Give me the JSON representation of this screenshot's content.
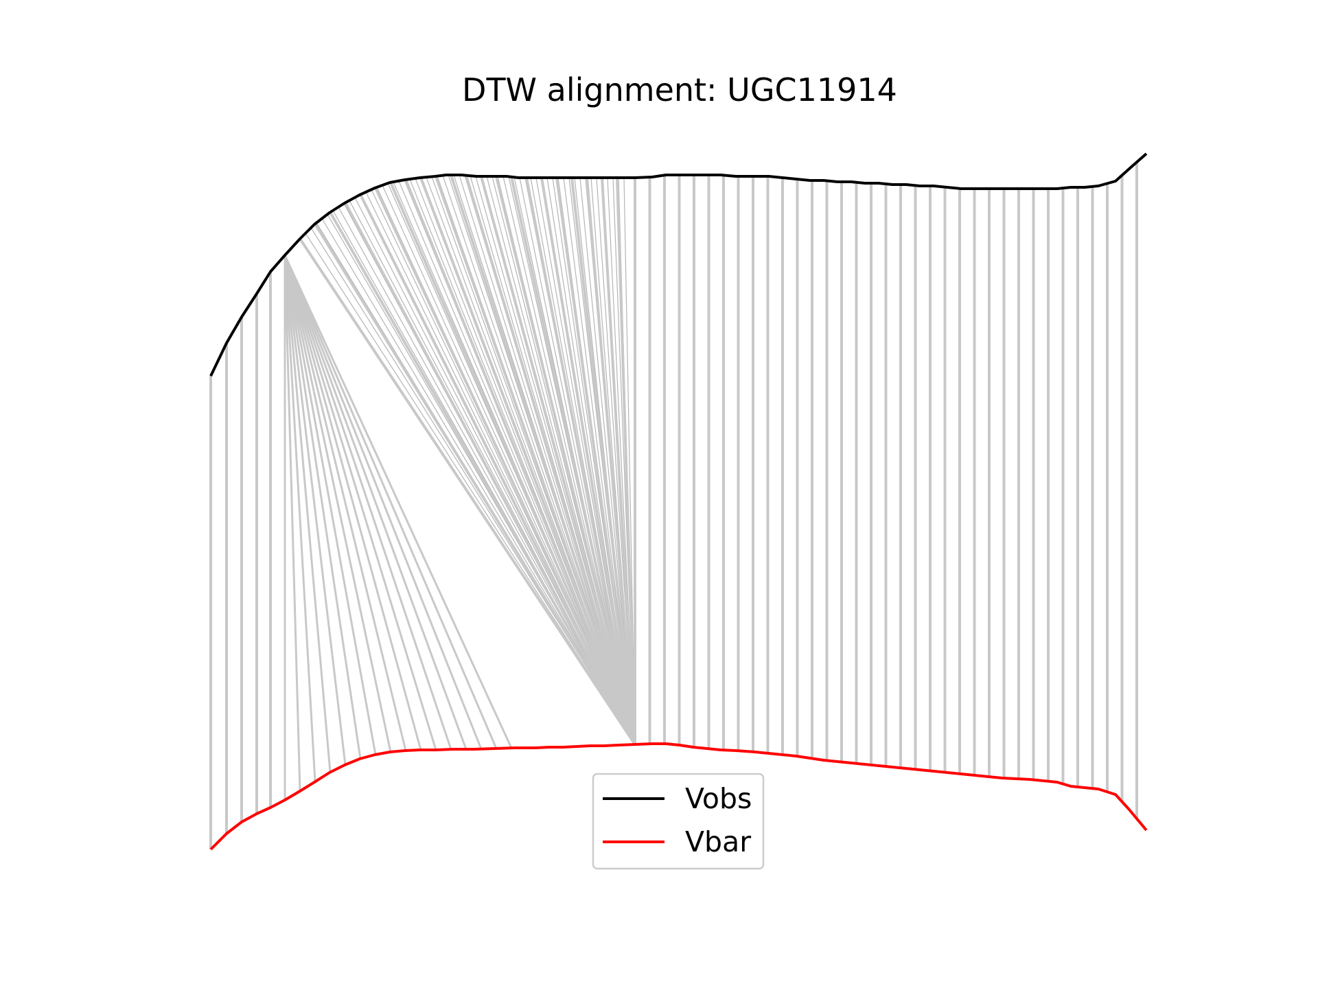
{
  "chart_data": {
    "type": "line",
    "title": "DTW alignment: UGC11914",
    "xlabel": "",
    "ylabel": "",
    "axes_visible": false,
    "grid": false,
    "legend_position": "lower center",
    "series": [
      {
        "name": "Vobs",
        "color": "#000000",
        "values": [
          0.78,
          0.83,
          0.86,
          0.89,
          0.9,
          0.92,
          0.94,
          0.955,
          0.965,
          0.975,
          0.98,
          0.985,
          0.988,
          0.99,
          0.99,
          0.991,
          0.992,
          0.993,
          0.993,
          0.992,
          0.991,
          0.991,
          0.991,
          0.991,
          0.991,
          0.99,
          0.99,
          0.99,
          0.99,
          0.99,
          0.99,
          0.99,
          0.99,
          0.99,
          0.99,
          0.99,
          0.99,
          0.99,
          0.99,
          0.99,
          0.99,
          0.99,
          0.99,
          0.99,
          0.99,
          0.99,
          0.99,
          0.99,
          0.99,
          0.99,
          0.99,
          0.99,
          0.99,
          0.99,
          0.99,
          0.99,
          0.99,
          0.99,
          0.99,
          0.99,
          0.99,
          0.99,
          0.99,
          0.99,
          0.99,
          0.99,
          0.99,
          0.99,
          0.99,
          0.99,
          0.99,
          0.99,
          0.99,
          0.99,
          0.99,
          0.99,
          0.99,
          0.99,
          0.99,
          0.99,
          0.99,
          0.99,
          0.99,
          0.99,
          0.99,
          0.99,
          0.99,
          0.99,
          0.99,
          0.99,
          0.99,
          0.99,
          0.99,
          0.99,
          0.99,
          0.99,
          0.99,
          0.99,
          0.99,
          0.99,
          0.99,
          0.99,
          0.99,
          0.99,
          0.99,
          0.99,
          0.99,
          0.99,
          0.99,
          0.99,
          0.99,
          0.99,
          0.99,
          0.99,
          0.99,
          0.99,
          0.99,
          0.99,
          0.99,
          0.99,
          0.99,
          0.99,
          0.99,
          0.99,
          0.99,
          0.99,
          0.99,
          0.99,
          0.99,
          0.99,
          0.99,
          0.99,
          0.99,
          0.99,
          0.99,
          0.99,
          0.99,
          0.99,
          0.99,
          0.99,
          0.99,
          0.99,
          0.99,
          0.99,
          0.99,
          0.99,
          0.99,
          0.99,
          0.99,
          0.99,
          0.99,
          0.99,
          0.99,
          0.99,
          0.99,
          0.99,
          0.99,
          0.99,
          0.99,
          0.99,
          0.99,
          0.99,
          0.99,
          0.99,
          0.99,
          0.99,
          0.99,
          0.99,
          0.99,
          0.99,
          0.99,
          0.99,
          0.99,
          0.99,
          0.99,
          0.99,
          0.99,
          0.99,
          0.99,
          0.99,
          0.99,
          0.99,
          0.99,
          0.99,
          0.99,
          0.99,
          0.99,
          0.99,
          0.99,
          0.99,
          0.99,
          0.99,
          0.99,
          0.99,
          0.99,
          0.99,
          0.99,
          0.99,
          0.99,
          0.99,
          0.99,
          0.99,
          0.99,
          0.99,
          0.99,
          0.99
        ]
      },
      {
        "name": "Vbar",
        "color": "#ff0000",
        "values": []
      }
    ]
  },
  "legend": {
    "items": [
      {
        "label": "Vobs",
        "color": "#000000"
      },
      {
        "label": "Vbar",
        "color": "#ff0000"
      }
    ]
  }
}
